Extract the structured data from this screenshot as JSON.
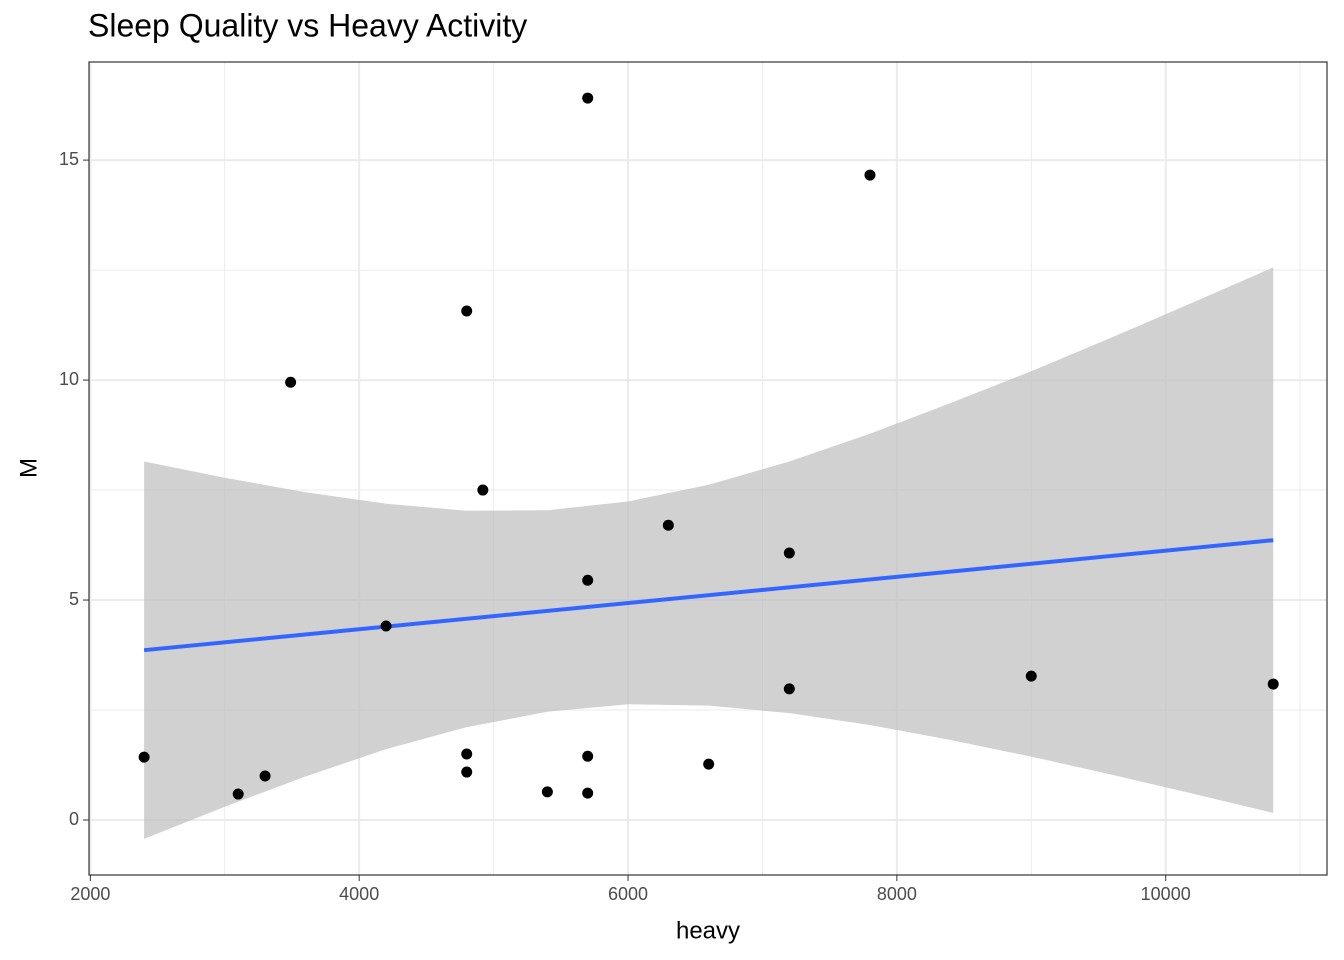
{
  "chart_data": {
    "type": "scatter",
    "title": "Sleep Quality vs Heavy Activity",
    "xlabel": "heavy",
    "ylabel": "M",
    "xlim": [
      1990,
      11200
    ],
    "xticks": [
      2000,
      4000,
      6000,
      8000,
      10000
    ],
    "ylim": [
      -1.25,
      17.23
    ],
    "yticks": [
      0,
      5,
      10,
      15
    ],
    "grid": true,
    "points": {
      "color": "#000000",
      "x": [
        2400,
        3100,
        3300,
        3490,
        4200,
        4800,
        4800,
        4800,
        4920,
        5400,
        5700,
        5700,
        5700,
        5700,
        6300,
        6600,
        7200,
        7200,
        7800,
        9000,
        10800
      ],
      "values": [
        1.43,
        0.59,
        1.0,
        9.95,
        4.41,
        11.57,
        1.5,
        1.09,
        7.5,
        0.64,
        16.41,
        5.45,
        1.45,
        0.61,
        6.7,
        1.27,
        6.07,
        2.98,
        14.66,
        3.27,
        3.09
      ]
    },
    "smooth": {
      "color": "#3366ff",
      "x": [
        2400,
        10800
      ],
      "values": [
        3.86,
        6.36
      ]
    },
    "band": {
      "color": "#bebebe",
      "x": [
        2400,
        3000,
        3600,
        4200,
        4800,
        5400,
        6000,
        6600,
        7200,
        7800,
        8400,
        9000,
        9600,
        10200,
        10800
      ],
      "upper": [
        8.15,
        7.78,
        7.45,
        7.19,
        7.03,
        7.04,
        7.24,
        7.62,
        8.15,
        8.78,
        9.48,
        10.2,
        10.97,
        11.76,
        12.56
      ],
      "lower": [
        -0.43,
        0.3,
        0.99,
        1.61,
        2.11,
        2.46,
        2.63,
        2.6,
        2.43,
        2.16,
        1.82,
        1.44,
        1.03,
        0.6,
        0.16
      ]
    }
  }
}
